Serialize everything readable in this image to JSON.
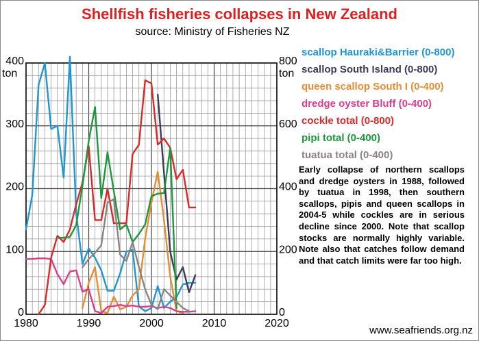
{
  "title": "Shellfish fisheries collapses in New Zealand",
  "subtitle": "source: Ministry of Fisheries NZ",
  "note": "Early collapse of northern scallops and dredge oysters in 1988, followed by tuatua in 1998, then southern scallops, pipis and queen scallops in 2004-5 while cockles are in serious decline since 2000. Note that scallop stocks are normally highly variable. Note also that catches follow demand and that catch limits were far too high.",
  "website": "www.seafriends.org.nz",
  "chart_data": {
    "type": "line",
    "title": "Shellfish fisheries collapses in New Zealand",
    "subtitle": "source: Ministry of Fisheries NZ",
    "xlim": [
      1980,
      2020
    ],
    "x_ticks": [
      "1980",
      "1990",
      "2000",
      "2010",
      "2020"
    ],
    "left_axis": {
      "unit": "ton",
      "range": [
        0,
        400
      ],
      "ticks": [
        "0",
        "100",
        "200",
        "300",
        "400"
      ]
    },
    "right_axis": {
      "unit": "ton",
      "range": [
        0,
        800
      ],
      "ticks": [
        "0",
        "200",
        "400",
        "600",
        "800"
      ]
    },
    "grid": true,
    "legend_position": "right",
    "series": [
      {
        "name": "scallop Hauraki&Barrier (0-800)",
        "color": "#1e96d2",
        "axis": "right",
        "x": [
          1980,
          1981,
          1982,
          1983,
          1984,
          1985,
          1986,
          1987,
          1988,
          1989,
          1990,
          1991,
          1992,
          1993,
          1994,
          1995,
          1996,
          1997,
          1998,
          1999,
          2000,
          2001,
          2002,
          2003,
          2004,
          2005,
          2006,
          2007
        ],
        "y": [
          270,
          380,
          730,
          800,
          590,
          600,
          435,
          820,
          320,
          160,
          210,
          180,
          140,
          75,
          75,
          130,
          200,
          205,
          25,
          10,
          20,
          90,
          20,
          40,
          55,
          95,
          100,
          100
        ]
      },
      {
        "name": "scallop South Island (0-800)",
        "color": "#3c3c5a",
        "axis": "right",
        "x": [
          2001,
          2002,
          2003,
          2004,
          2005,
          2006,
          2007
        ],
        "y": [
          700,
          450,
          200,
          110,
          150,
          70,
          125
        ]
      },
      {
        "name": "queen scallop South I (0-400)",
        "color": "#e68c32",
        "axis": "left",
        "x": [
          1989,
          1990,
          1991,
          1992,
          1993,
          1994,
          1995,
          1996,
          1997,
          1998,
          1999,
          2000,
          2001,
          2002,
          2003,
          2004,
          2005
        ],
        "y": [
          10,
          50,
          75,
          5,
          2,
          28,
          8,
          12,
          30,
          40,
          120,
          178,
          227,
          150,
          60,
          5,
          2
        ]
      },
      {
        "name": "dredge oyster Bluff (0-400)",
        "color": "#dc3c8c",
        "axis": "left",
        "x": [
          1980,
          1981,
          1982,
          1983,
          1984,
          1985,
          1986,
          1987,
          1988,
          1989,
          1990,
          1991,
          1992,
          1993,
          1994,
          1995,
          1996,
          1997,
          1998,
          1999,
          2000,
          2001,
          2002,
          2003,
          2004,
          2005,
          2006,
          2007
        ],
        "y": [
          88,
          88,
          89,
          89,
          88,
          64,
          48,
          68,
          70,
          36,
          40,
          5,
          2,
          12,
          13,
          15,
          13,
          14,
          12,
          12,
          13,
          10,
          12,
          10,
          5,
          4,
          4,
          5
        ]
      },
      {
        "name": "cockle total (0-800)",
        "color": "#dc2828",
        "axis": "right",
        "x": [
          1982,
          1983,
          1984,
          1985,
          1986,
          1987,
          1988,
          1989,
          1990,
          1991,
          1992,
          1993,
          1994,
          1995,
          1996,
          1997,
          1998,
          1999,
          2000,
          2001,
          2002,
          2003,
          2004,
          2005,
          2006,
          2007
        ],
        "y": [
          0,
          30,
          180,
          250,
          230,
          270,
          350,
          420,
          535,
          300,
          300,
          400,
          290,
          290,
          290,
          510,
          540,
          745,
          735,
          540,
          560,
          530,
          430,
          460,
          340,
          340
        ]
      },
      {
        "name": "pipi total (0-400)",
        "color": "#1e963c",
        "axis": "left",
        "x": [
          1985,
          1986,
          1987,
          1988,
          1989,
          1990,
          1991,
          1992,
          1993,
          1994,
          1995,
          1996,
          1997,
          1998,
          1999,
          2000,
          2001,
          2002,
          2003,
          2004
        ],
        "y": [
          122,
          122,
          123,
          142,
          205,
          276,
          330,
          185,
          258,
          196,
          135,
          143,
          115,
          128,
          143,
          188,
          192,
          193,
          265,
          10
        ]
      },
      {
        "name": "tuatua total (0-400)",
        "color": "#8c8282",
        "axis": "left",
        "x": [
          1989,
          1990,
          1991,
          1992,
          1993,
          1994,
          1995,
          1996,
          1997,
          1998,
          1999,
          2000,
          2001,
          2002,
          2003,
          2004,
          2005,
          2006
        ],
        "y": [
          75,
          88,
          98,
          110,
          178,
          183,
          95,
          85,
          115,
          75,
          40,
          15,
          8,
          40,
          30,
          20,
          10,
          5
        ]
      }
    ]
  }
}
